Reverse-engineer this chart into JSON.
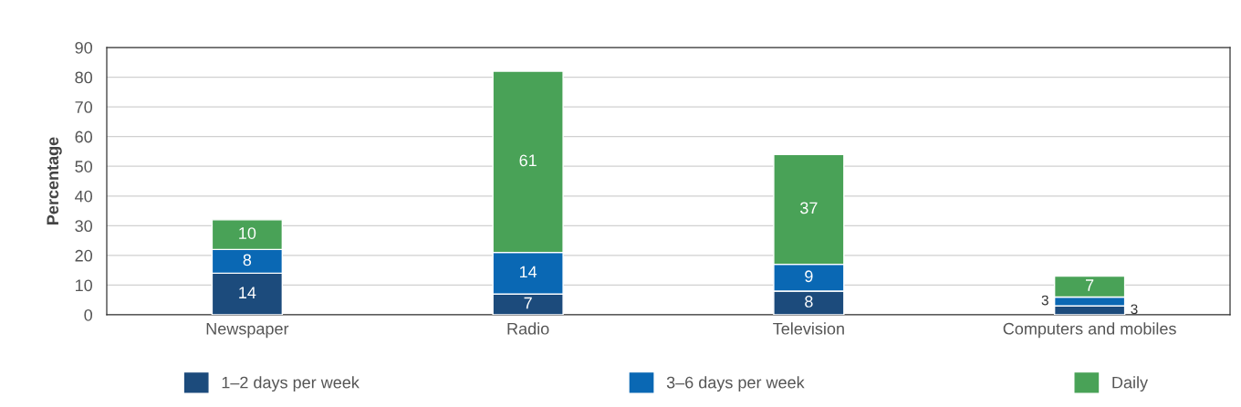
{
  "chart_data": {
    "type": "bar",
    "stacked": true,
    "ylabel": "Percentage",
    "categories": [
      "Newspaper",
      "Radio",
      "Television",
      "Computers and mobiles"
    ],
    "series": [
      {
        "name": "1–2 days per week",
        "color": "#1c4b7c",
        "values": [
          14,
          7,
          8,
          3
        ]
      },
      {
        "name": "3–6 days per week",
        "color": "#0a68b4",
        "values": [
          8,
          14,
          9,
          3
        ]
      },
      {
        "name": "Daily",
        "color": "#49a257",
        "values": [
          10,
          61,
          37,
          7
        ]
      }
    ],
    "ylim": [
      0,
      90
    ],
    "yticks": [
      0,
      10,
      20,
      30,
      40,
      50,
      60,
      70,
      80,
      90
    ],
    "grid": "y",
    "legend": "bottom",
    "data_labels": true
  }
}
